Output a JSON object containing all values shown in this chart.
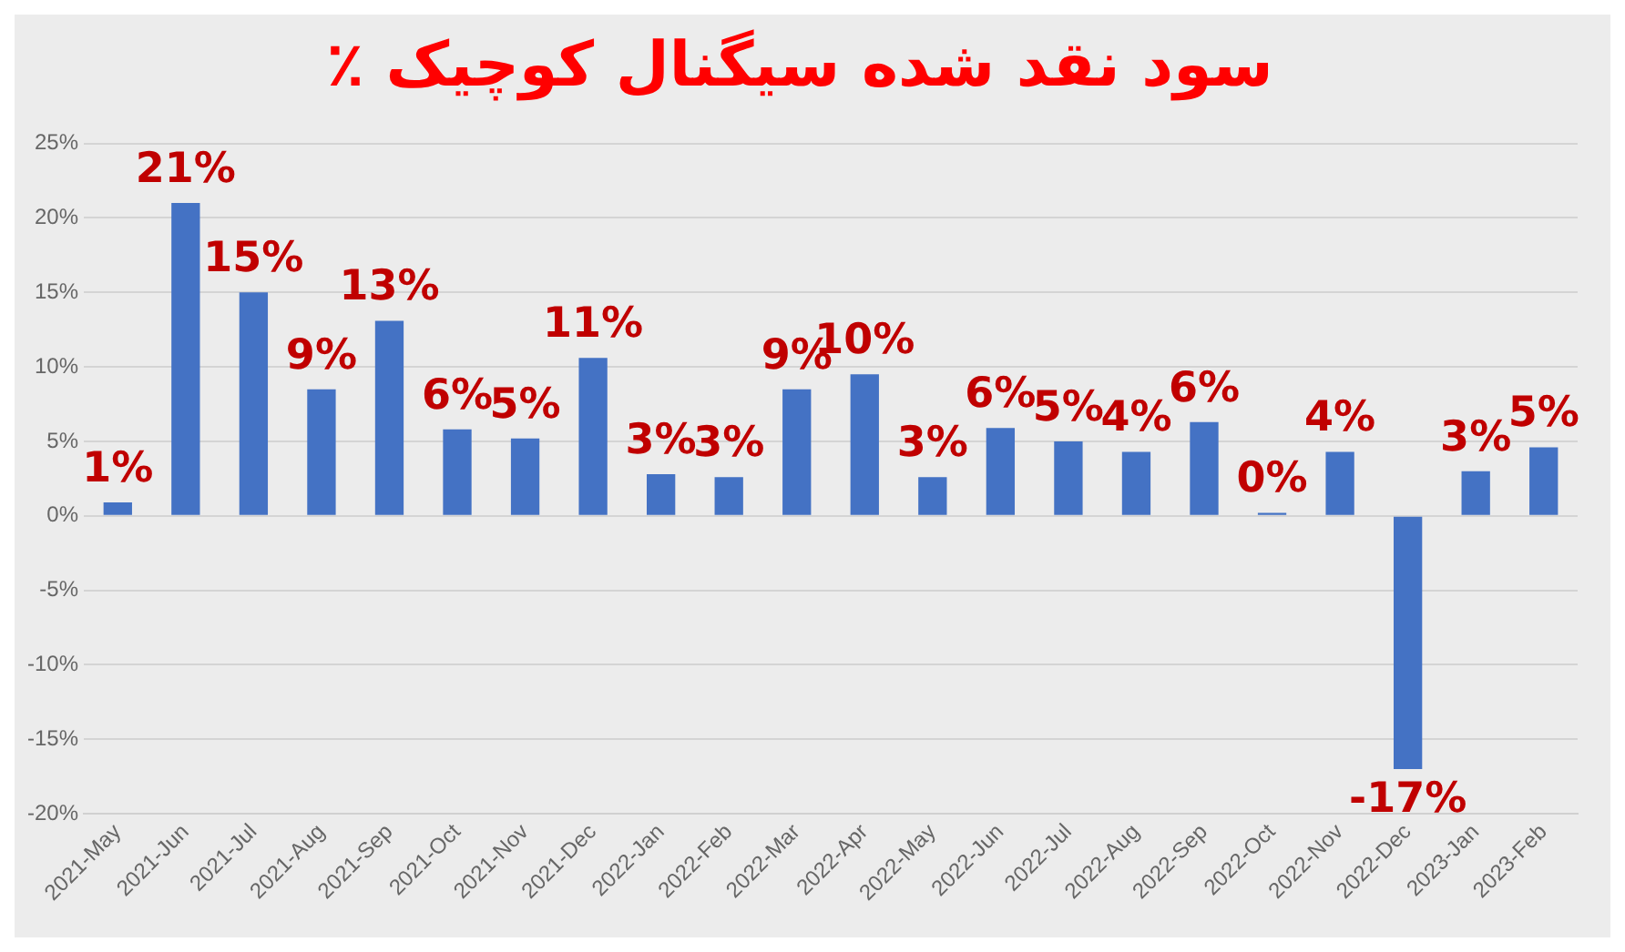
{
  "chart_data": {
    "type": "bar",
    "title": "٪ سود نقد شده سیگنال کوچیک",
    "categories": [
      "2021-May",
      "2021-Jun",
      "2021-Jul",
      "2021-Aug",
      "2021-Sep",
      "2021-Oct",
      "2021-Nov",
      "2021-Dec",
      "2022-Jan",
      "2022-Feb",
      "2022-Mar",
      "2022-Apr",
      "2022-May",
      "2022-Jun",
      "2022-Jul",
      "2022-Aug",
      "2022-Sep",
      "2022-Oct",
      "2022-Nov",
      "2022-Dec",
      "2023-Jan",
      "2023-Feb"
    ],
    "values": [
      0.9,
      21.0,
      15.0,
      8.5,
      13.1,
      5.8,
      5.2,
      10.6,
      2.8,
      2.6,
      8.5,
      9.5,
      2.6,
      5.9,
      5.0,
      4.3,
      6.3,
      0.2,
      4.3,
      -17.0,
      3.0,
      4.6
    ],
    "value_labels": [
      "1%",
      "21%",
      "15%",
      "9%",
      "13%",
      "6%",
      "5%",
      "11%",
      "3%",
      "3%",
      "9%",
      "10%",
      "3%",
      "6%",
      "5%",
      "4%",
      "6%",
      "0%",
      "4%",
      "-17%",
      "3%",
      "5%"
    ],
    "color": "#4472c4",
    "ylim": [
      -20,
      25
    ],
    "yticks": [
      {
        "value": -20,
        "label": "-20%"
      },
      {
        "value": -15,
        "label": "-15%"
      },
      {
        "value": -10,
        "label": "-10%"
      },
      {
        "value": -5,
        "label": "-5%"
      },
      {
        "value": 0,
        "label": "0%"
      },
      {
        "value": 5,
        "label": "5%"
      },
      {
        "value": 10,
        "label": "10%"
      },
      {
        "value": 15,
        "label": "15%"
      },
      {
        "value": 20,
        "label": "20%"
      },
      {
        "value": 25,
        "label": "25%"
      }
    ],
    "grid": "y"
  }
}
